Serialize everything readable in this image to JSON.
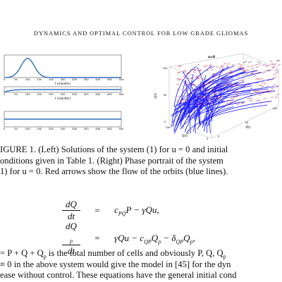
{
  "header": {
    "title": "DYNAMICS AND OPTIMAL CONTROL FOR LOW GRADE GLIOMAS"
  },
  "left_plots": [
    {
      "xlabel": "t (months)",
      "xticks": [
        "0",
        "50",
        "100",
        "150",
        "200",
        "250",
        "300",
        "350",
        "400",
        "450",
        "500"
      ]
    },
    {
      "xlabel": "t (months)",
      "xticks": [
        "0",
        "50",
        "100",
        "150",
        "200",
        "250",
        "300",
        "350",
        "400",
        "450",
        "500"
      ]
    },
    {
      "xticks": [
        "0",
        "50",
        "100",
        "150",
        "200",
        "250",
        "300",
        "350",
        "400",
        "450",
        "500"
      ]
    }
  ],
  "right_plot": {
    "title": "u=0",
    "zlabel": "Q(t)",
    "xlabel": "Q(t)",
    "ylabel": "P(t)",
    "zticks": [
      "100",
      "50",
      "0"
    ],
    "xticks": [
      "100",
      "50",
      "0"
    ],
    "yticks": [
      "0",
      "50",
      "100"
    ]
  },
  "caption": [
    [
      {
        "text": "IGURE 1. (Left) Solutions of the system (1) for u = 0 and initial"
      }
    ],
    [
      {
        "text": "onditions given in Table 1. (Right) Phase portrait of the system"
      }
    ],
    [
      {
        "text": "1) for u = 0. Red arrows show the flow of the orbits (blue lines)."
      }
    ]
  ],
  "equations": [
    {
      "num": "dQ",
      "den": "dt",
      "eq": "=",
      "rhs": [
        {
          "text": "c"
        },
        {
          "sub": "PQ"
        },
        {
          "text": "P − γQu,"
        }
      ]
    },
    {
      "num": "dQ",
      "num_sub": "p",
      "den": "dt",
      "eq": "=",
      "rhs": [
        {
          "text": "γQu − c"
        },
        {
          "sub": "QP"
        },
        {
          "text": "Q"
        },
        {
          "sub": "p"
        },
        {
          "text": " − δ"
        },
        {
          "sub": "QP"
        },
        {
          "text": "Q"
        },
        {
          "sub": "p"
        },
        {
          "text": ","
        }
      ]
    }
  ],
  "body": [
    [
      {
        "text": "= P + Q + Q"
      },
      {
        "sub": "p"
      },
      {
        "text": " is the total number of cells and obviously P, Q, Q"
      },
      {
        "sub": "p"
      }
    ],
    [
      {
        "text": "≡ 0 in the above system would give the model in [45] for the dyn"
      }
    ],
    [
      {
        "text": "ease without control. These equations have the general initial cond"
      }
    ]
  ]
}
